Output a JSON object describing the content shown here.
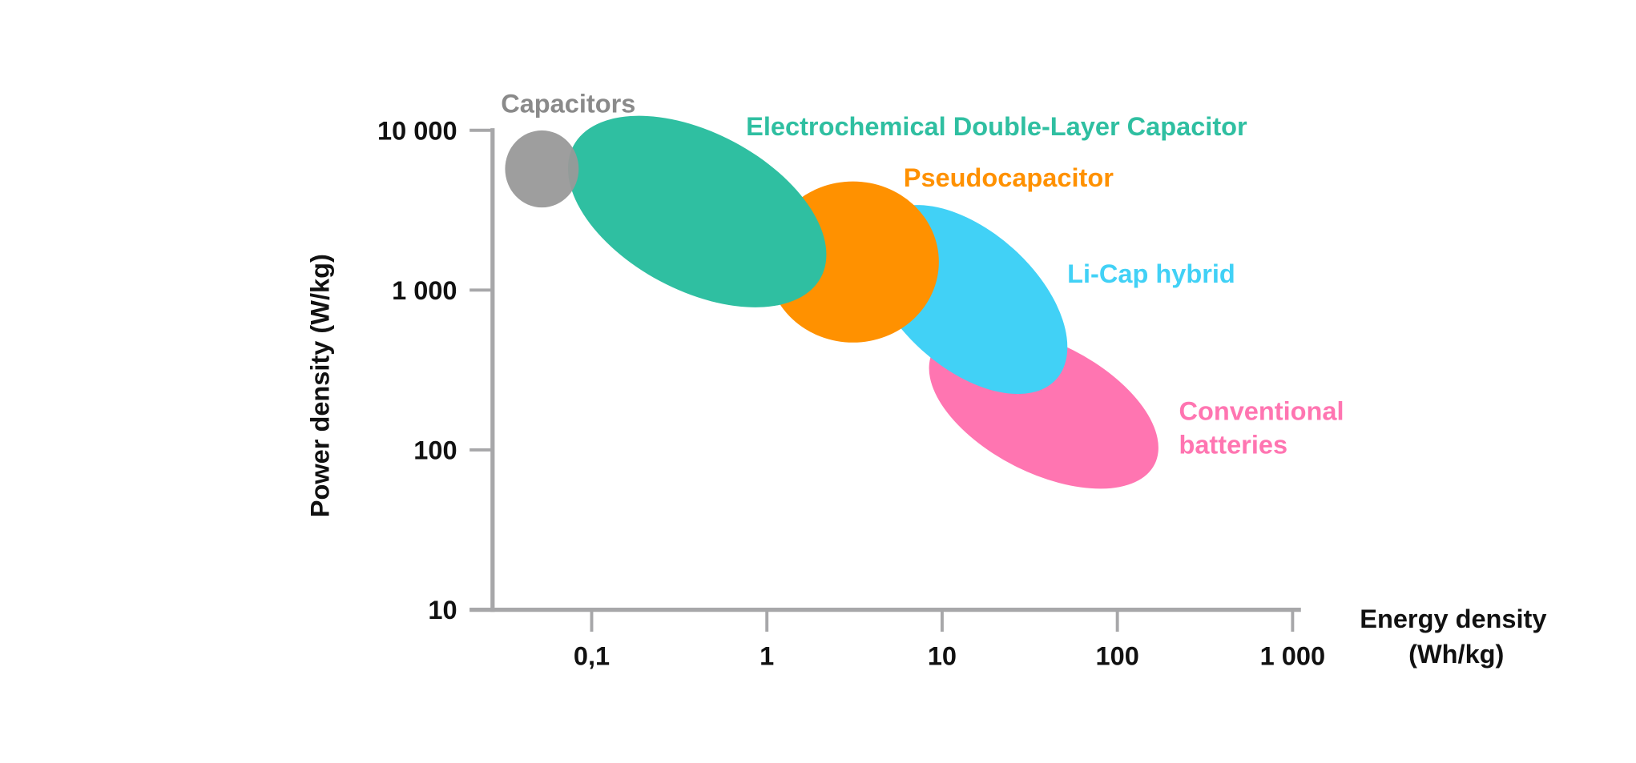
{
  "chart_data": {
    "type": "scatter",
    "subtype": "ragone-plot-regions",
    "xlabel": [
      "Energy density",
      "(Wh/kg)"
    ],
    "ylabel": "Power density (W/kg)",
    "xscale": "log",
    "yscale": "log",
    "xlim": [
      0.025,
      1000
    ],
    "ylim": [
      10,
      10000
    ],
    "xticks": [
      0.1,
      1,
      10,
      100,
      1000
    ],
    "xtick_labels": [
      "0,1",
      "1",
      "10",
      "100",
      "1 000"
    ],
    "yticks": [
      10,
      100,
      1000,
      10000
    ],
    "ytick_labels": [
      "10",
      "100",
      "1 000",
      "10 000"
    ],
    "grid": false,
    "axis_color": "#a7a7a9",
    "regions": [
      {
        "name": "Conventional batteries",
        "label_lines": [
          "Conventional",
          "batteries"
        ],
        "color": "#ff75b1",
        "center_energy": 38,
        "center_power": 183,
        "semi_axes_decades": [
          0.71,
          0.37
        ],
        "tilt_deg": 27,
        "energy_range": [
          8,
          185
        ],
        "power_range": [
          65,
          515
        ]
      },
      {
        "name": "Li-Cap hybrid",
        "label_lines": [
          "Li-Cap hybrid"
        ],
        "color": "#41d1f6",
        "center_energy": 14,
        "center_power": 873,
        "semi_axes_decades": [
          0.68,
          0.39
        ],
        "tilt_deg": 42,
        "energy_range": [
          4.2,
          48
        ],
        "power_range": [
          240,
          3240
        ]
      },
      {
        "name": "Pseudocapacitor",
        "label_lines": [
          "Pseudocapacitor"
        ],
        "color": "#ff9100",
        "center_energy": 3.1,
        "center_power": 1500,
        "semi_axes_decades": [
          0.49,
          0.46
        ],
        "tilt_deg": 0,
        "energy_range": [
          1,
          9.5
        ],
        "power_range": [
          470,
          4780
        ]
      },
      {
        "name": "Electrochemical Double-Layer Capacitor",
        "label_lines": [
          "Electrochemical Double-Layer Capacitor"
        ],
        "color": "#2fbfa1",
        "center_energy": 0.4,
        "center_power": 3100,
        "semi_axes_decades": [
          0.8,
          0.45
        ],
        "tilt_deg": 28,
        "energy_range": [
          0.072,
          2.2
        ],
        "power_range": [
          870,
          11100
        ]
      },
      {
        "name": "Capacitors",
        "label_lines": [
          "Capacitors"
        ],
        "color": "#999999",
        "label_color": "#8a8a8a",
        "center_energy": 0.052,
        "center_power": 5730,
        "semi_axes_decades": [
          0.21,
          0.22
        ],
        "tilt_deg": 0,
        "energy_range": [
          0.03,
          0.08
        ],
        "power_range": [
          3300,
          10000
        ]
      }
    ]
  }
}
